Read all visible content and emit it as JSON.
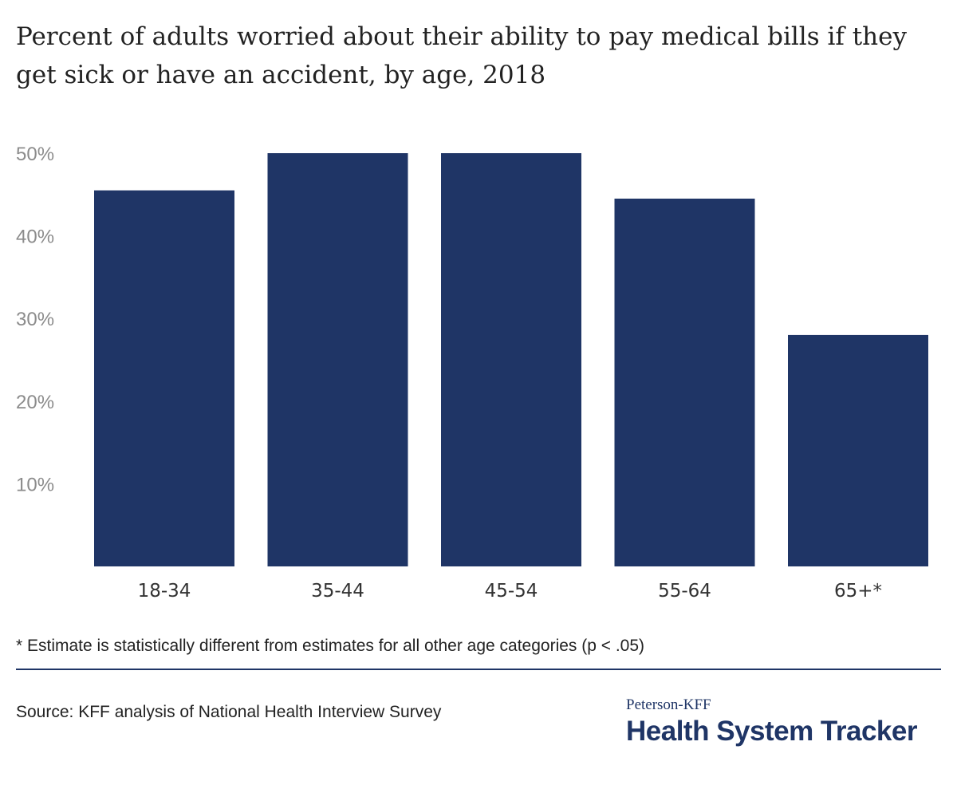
{
  "colors": {
    "bar": "#1f3566",
    "tick_text": "#8c8c8c",
    "text": "#222222",
    "brand": "#1f3566"
  },
  "chart_data": {
    "type": "bar",
    "title": "Percent of adults worried about their ability to pay medical bills if they get sick or have an accident, by age, 2018",
    "categories": [
      "18-34",
      "35-44",
      "45-54",
      "55-64",
      "65+*"
    ],
    "values": [
      45.5,
      50,
      50,
      44.5,
      28
    ],
    "ylim": [
      0,
      50
    ],
    "yticks": [
      10,
      20,
      30,
      40,
      50
    ],
    "ytick_labels": [
      "10%",
      "20%",
      "30%",
      "40%",
      "50%"
    ],
    "xlabel": "",
    "ylabel": "",
    "grid": false,
    "legend": "none"
  },
  "footnote": "* Estimate is statistically different from estimates for all other age categories (p < .05)",
  "source": "Source: KFF analysis of National Health Interview Survey",
  "logo": {
    "top_text": "Peterson-KFF",
    "main_text": "Health System Tracker"
  }
}
